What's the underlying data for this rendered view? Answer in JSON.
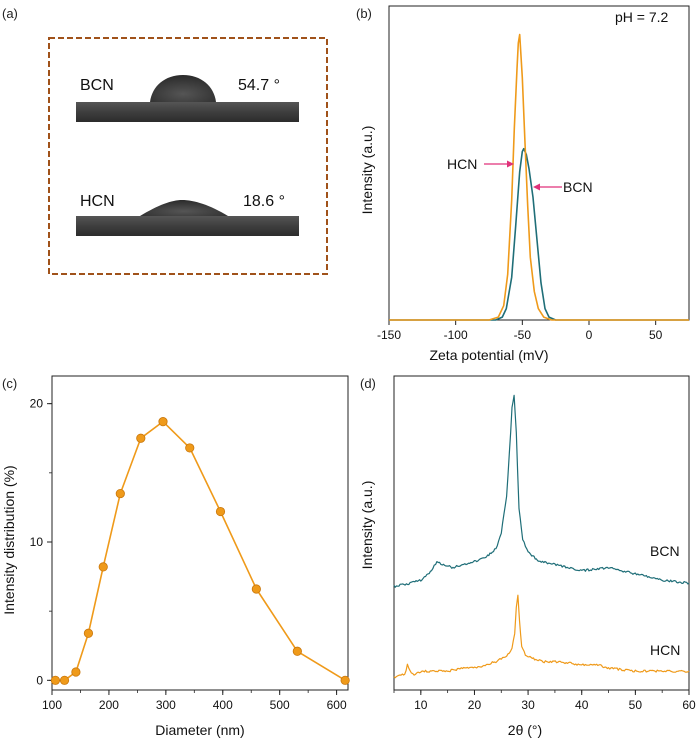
{
  "panels": {
    "a": {
      "label": "(a)"
    },
    "b": {
      "label": "(b)"
    },
    "c": {
      "label": "(c)"
    },
    "d": {
      "label": "(d)"
    }
  },
  "colors": {
    "orange": "#ef9a1a",
    "teal": "#1f6e78",
    "annotation": "#e0327a",
    "frame": "#a0521a"
  },
  "chart_data": [
    {
      "panel": "a",
      "type": "other",
      "samples": [
        {
          "name": "BCN",
          "angle": "54.7 °"
        },
        {
          "name": "HCN",
          "angle": "18.6 °"
        }
      ]
    },
    {
      "panel": "b",
      "type": "line",
      "xlabel": "Zeta potential (mV)",
      "ylabel": "Intensity (a.u.)",
      "annotation": "pH = 7.2",
      "xlim": [
        -150,
        75
      ],
      "ylim": [
        0,
        1.1
      ],
      "xticks": [
        -150,
        -100,
        -50,
        0,
        50
      ],
      "series": [
        {
          "name": "BCN",
          "color": "#1f6e78",
          "x": [
            -150,
            -70,
            -65,
            -62,
            -58,
            -55,
            -52,
            -50,
            -49,
            -47,
            -45,
            -42,
            -39,
            -36,
            -33,
            -30,
            -25,
            75
          ],
          "y": [
            0,
            0,
            0.01,
            0.04,
            0.15,
            0.33,
            0.52,
            0.59,
            0.6,
            0.58,
            0.53,
            0.43,
            0.28,
            0.13,
            0.04,
            0.01,
            0,
            0
          ]
        },
        {
          "name": "HCN",
          "color": "#ef9a1a",
          "x": [
            -150,
            -75,
            -68,
            -64,
            -61,
            -58,
            -56,
            -54,
            -53,
            -52,
            -50,
            -48,
            -46,
            -44,
            -41,
            -38,
            -34,
            -28,
            75
          ],
          "y": [
            0,
            0,
            0.01,
            0.05,
            0.16,
            0.42,
            0.67,
            0.88,
            0.97,
            1.0,
            0.85,
            0.62,
            0.4,
            0.22,
            0.1,
            0.04,
            0.01,
            0,
            0
          ]
        }
      ]
    },
    {
      "panel": "c",
      "type": "line",
      "xlabel": "Diameter (nm)",
      "ylabel": "Intensity distribution (%)",
      "xlim": [
        100,
        620
      ],
      "ylim": [
        -0.7,
        22
      ],
      "xticks": [
        100,
        200,
        300,
        400,
        500,
        600
      ],
      "yticks": [
        0,
        10,
        20
      ],
      "series": [
        {
          "name": "",
          "color": "#ef9a1a",
          "x": [
            106,
            122,
            142,
            164,
            190,
            220,
            256,
            295,
            342,
            396,
            459,
            531,
            615
          ],
          "y": [
            0,
            0,
            0.6,
            3.4,
            8.2,
            13.5,
            17.5,
            18.7,
            16.8,
            12.2,
            6.6,
            2.1,
            0
          ]
        }
      ]
    },
    {
      "panel": "d",
      "type": "line",
      "xlabel": "2θ (°)",
      "ylabel": "Intensity (a.u.)",
      "xlim": [
        5,
        60
      ],
      "ylim": [
        0,
        100
      ],
      "xticks": [
        10,
        20,
        30,
        40,
        50,
        60
      ],
      "series": [
        {
          "name": "BCN",
          "color": "#1f6e78",
          "x": [
            5,
            8,
            10,
            12,
            13,
            14,
            16,
            18,
            20,
            22,
            24,
            25,
            26,
            26.5,
            27,
            27.4,
            27.8,
            28.3,
            29,
            30,
            32,
            35,
            40,
            45,
            50,
            55,
            60
          ],
          "y": [
            33,
            34,
            35,
            38,
            41,
            40,
            39,
            40,
            41,
            42,
            45,
            50,
            62,
            75,
            90,
            94,
            82,
            58,
            48,
            44,
            41,
            40,
            38,
            39,
            37,
            35,
            34
          ]
        },
        {
          "name": "HCN",
          "color": "#ef9a1a",
          "x": [
            5,
            7,
            7.5,
            8,
            8.5,
            9,
            10,
            12,
            15,
            18,
            20,
            22,
            24,
            25,
            26,
            27,
            27.5,
            27.8,
            28.1,
            28.4,
            28.8,
            29.5,
            31,
            33,
            36,
            40,
            43,
            45,
            50,
            55,
            60
          ],
          "y": [
            4,
            5,
            8,
            6,
            5,
            5,
            6,
            6,
            6,
            7,
            7,
            8,
            9,
            10,
            11,
            13,
            18,
            26,
            30,
            22,
            14,
            11,
            10,
            9,
            9,
            8,
            8,
            7,
            6,
            6,
            6
          ]
        }
      ]
    }
  ]
}
